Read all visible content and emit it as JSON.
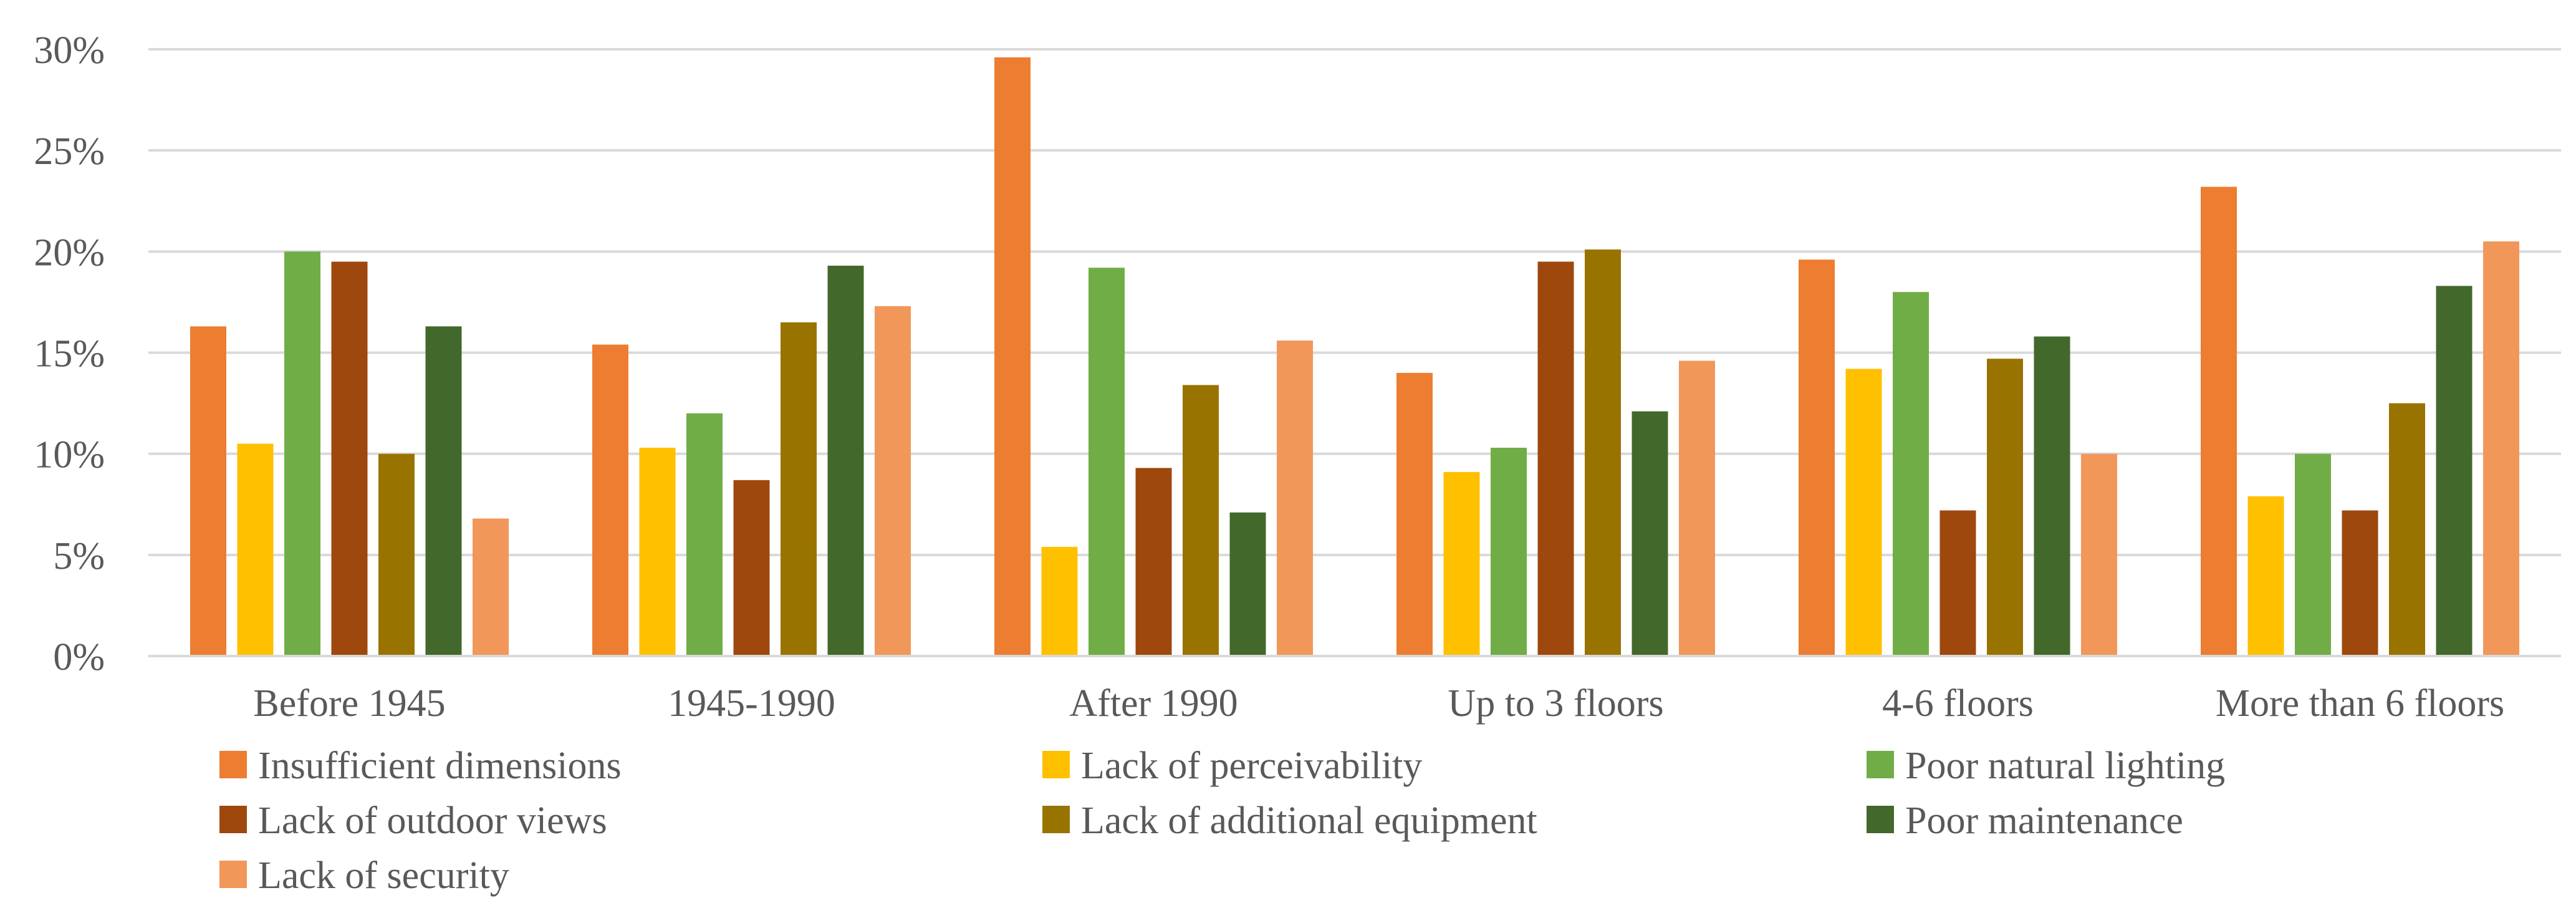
{
  "chart_data": {
    "type": "bar",
    "title": "",
    "xlabel": "",
    "ylabel": "",
    "ylim": [
      0,
      30
    ],
    "y_ticks": [
      0,
      5,
      10,
      15,
      20,
      25,
      30
    ],
    "y_tick_labels": [
      "0%",
      "5%",
      "10%",
      "15%",
      "20%",
      "25%",
      "30%"
    ],
    "grid": true,
    "legend_position": "bottom",
    "categories": [
      "Before 1945",
      "1945-1990",
      "After 1990",
      "Up to 3 floors",
      "4-6 floors",
      "More than 6 floors"
    ],
    "series": [
      {
        "name": "Insufficient dimensions",
        "color": "#ED7D31",
        "values": [
          16.3,
          15.4,
          29.6,
          14.0,
          19.6,
          23.2
        ]
      },
      {
        "name": "Lack of perceivability",
        "color": "#FFC000",
        "values": [
          10.5,
          10.3,
          5.4,
          9.1,
          14.2,
          7.9
        ]
      },
      {
        "name": "Poor natural lighting",
        "color": "#70AD47",
        "values": [
          20.0,
          12.0,
          19.2,
          10.3,
          18.0,
          10.0
        ]
      },
      {
        "name": "Lack of outdoor views",
        "color": "#9E480E",
        "values": [
          19.5,
          8.7,
          9.3,
          19.5,
          7.2,
          7.2
        ]
      },
      {
        "name": "Lack of additional equipment",
        "color": "#997300",
        "values": [
          10.0,
          16.5,
          13.4,
          20.1,
          14.7,
          12.5
        ]
      },
      {
        "name": "Poor maintenance",
        "color": "#43682B",
        "values": [
          16.3,
          19.3,
          7.1,
          12.1,
          15.8,
          18.3
        ]
      },
      {
        "name": "Lack of security",
        "color": "#F1975A",
        "values": [
          6.8,
          17.3,
          15.6,
          14.6,
          10.0,
          20.5
        ]
      }
    ]
  }
}
